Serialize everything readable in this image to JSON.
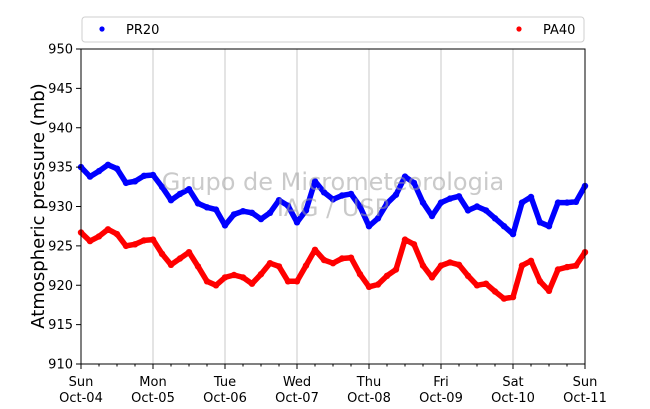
{
  "chart_data": {
    "type": "scatter",
    "ylabel": "Atmospheric pressure (mb)",
    "ylim": [
      910,
      950
    ],
    "yticks": [
      910,
      915,
      920,
      925,
      930,
      935,
      940,
      945,
      950
    ],
    "xlim": [
      "2020-10-04",
      "2020-10-11"
    ],
    "x_day_names": [
      "Sun",
      "Mon",
      "Tue",
      "Wed",
      "Thu",
      "Fri",
      "Sat",
      "Sun"
    ],
    "x_dates": [
      "Oct-04",
      "Oct-05",
      "Oct-06",
      "Oct-07",
      "Oct-08",
      "Oct-09",
      "Oct-10",
      "Oct-11"
    ],
    "grid": "vertical",
    "legend": "top",
    "watermark": [
      "Grupo de Micrometeorologia",
      "IAG / USP"
    ],
    "series": [
      {
        "name": "PR20",
        "color": "#0000ff",
        "x": [
          "2020-10-04 00:00",
          "2020-10-04 03:00",
          "2020-10-04 06:00",
          "2020-10-04 09:00",
          "2020-10-04 12:00",
          "2020-10-04 15:00",
          "2020-10-04 18:00",
          "2020-10-04 21:00",
          "2020-10-05 00:00",
          "2020-10-05 03:00",
          "2020-10-05 06:00",
          "2020-10-05 09:00",
          "2020-10-05 12:00",
          "2020-10-05 15:00",
          "2020-10-05 18:00",
          "2020-10-05 21:00",
          "2020-10-06 00:00",
          "2020-10-06 03:00",
          "2020-10-06 06:00",
          "2020-10-06 09:00",
          "2020-10-06 12:00",
          "2020-10-06 15:00",
          "2020-10-06 18:00",
          "2020-10-06 21:00",
          "2020-10-07 00:00",
          "2020-10-07 03:00",
          "2020-10-07 06:00",
          "2020-10-07 09:00",
          "2020-10-07 12:00",
          "2020-10-07 15:00",
          "2020-10-07 18:00",
          "2020-10-07 21:00",
          "2020-10-08 00:00",
          "2020-10-08 03:00",
          "2020-10-08 06:00",
          "2020-10-08 09:00",
          "2020-10-08 12:00",
          "2020-10-08 15:00",
          "2020-10-08 18:00",
          "2020-10-08 21:00",
          "2020-10-09 00:00",
          "2020-10-09 03:00",
          "2020-10-09 06:00",
          "2020-10-09 09:00",
          "2020-10-09 12:00",
          "2020-10-09 15:00",
          "2020-10-09 18:00",
          "2020-10-09 21:00",
          "2020-10-10 00:00",
          "2020-10-10 03:00",
          "2020-10-10 06:00",
          "2020-10-10 09:00",
          "2020-10-10 12:00",
          "2020-10-10 15:00",
          "2020-10-10 18:00",
          "2020-10-10 21:00",
          "2020-10-11 00:00"
        ],
        "y": [
          935.0,
          933.8,
          934.5,
          935.3,
          934.8,
          933.0,
          933.2,
          933.9,
          934.0,
          932.5,
          930.8,
          931.6,
          932.2,
          930.4,
          929.9,
          929.6,
          927.6,
          929.0,
          929.4,
          929.2,
          928.4,
          929.2,
          930.8,
          930.1,
          928.0,
          929.5,
          933.2,
          931.8,
          930.9,
          931.4,
          931.6,
          930.0,
          927.5,
          928.5,
          930.4,
          931.5,
          933.8,
          933.0,
          930.5,
          928.8,
          930.5,
          931.0,
          931.3,
          929.5,
          930.0,
          929.5,
          928.5,
          927.5,
          926.5,
          930.5,
          931.2,
          928.0,
          927.5,
          930.5,
          930.5,
          930.6,
          932.6
        ]
      },
      {
        "name": "PA40",
        "color": "#ff0000",
        "x": [
          "2020-10-04 00:00",
          "2020-10-04 03:00",
          "2020-10-04 06:00",
          "2020-10-04 09:00",
          "2020-10-04 12:00",
          "2020-10-04 15:00",
          "2020-10-04 18:00",
          "2020-10-04 21:00",
          "2020-10-05 00:00",
          "2020-10-05 03:00",
          "2020-10-05 06:00",
          "2020-10-05 09:00",
          "2020-10-05 12:00",
          "2020-10-05 15:00",
          "2020-10-05 18:00",
          "2020-10-05 21:00",
          "2020-10-06 00:00",
          "2020-10-06 03:00",
          "2020-10-06 06:00",
          "2020-10-06 09:00",
          "2020-10-06 12:00",
          "2020-10-06 15:00",
          "2020-10-06 18:00",
          "2020-10-06 21:00",
          "2020-10-07 00:00",
          "2020-10-07 03:00",
          "2020-10-07 06:00",
          "2020-10-07 09:00",
          "2020-10-07 12:00",
          "2020-10-07 15:00",
          "2020-10-07 18:00",
          "2020-10-07 21:00",
          "2020-10-08 00:00",
          "2020-10-08 03:00",
          "2020-10-08 06:00",
          "2020-10-08 09:00",
          "2020-10-08 12:00",
          "2020-10-08 15:00",
          "2020-10-08 18:00",
          "2020-10-08 21:00",
          "2020-10-09 00:00",
          "2020-10-09 03:00",
          "2020-10-09 06:00",
          "2020-10-09 09:00",
          "2020-10-09 12:00",
          "2020-10-09 15:00",
          "2020-10-09 18:00",
          "2020-10-09 21:00",
          "2020-10-10 00:00",
          "2020-10-10 03:00",
          "2020-10-10 06:00",
          "2020-10-10 09:00",
          "2020-10-10 12:00",
          "2020-10-10 15:00",
          "2020-10-10 18:00",
          "2020-10-10 21:00",
          "2020-10-11 00:00"
        ],
        "y": [
          926.7,
          925.6,
          926.2,
          927.1,
          926.5,
          925.0,
          925.2,
          925.7,
          925.8,
          924.0,
          922.6,
          923.4,
          924.2,
          922.4,
          920.5,
          920.0,
          921.0,
          921.3,
          921.0,
          920.2,
          921.4,
          922.8,
          922.4,
          920.5,
          920.5,
          922.5,
          924.5,
          923.2,
          922.8,
          923.4,
          923.5,
          921.4,
          919.8,
          920.1,
          921.2,
          922.0,
          925.8,
          925.2,
          922.5,
          921.0,
          922.5,
          922.9,
          922.6,
          921.2,
          920.0,
          920.2,
          919.2,
          918.3,
          918.5,
          922.5,
          923.1,
          920.5,
          919.3,
          922.0,
          922.3,
          922.5,
          924.2
        ]
      }
    ]
  }
}
